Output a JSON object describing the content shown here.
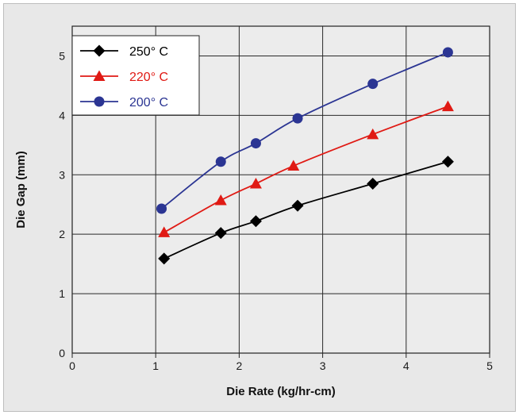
{
  "chart_data": {
    "type": "line",
    "title": "",
    "xlabel": "Die Rate (kg/hr-cm)",
    "ylabel": "Die Gap (mm)",
    "xlim": [
      0,
      5
    ],
    "ylim": [
      0,
      5.5
    ],
    "x_ticks": [
      "0",
      "1",
      "2",
      "3",
      "4",
      "5"
    ],
    "y_ticks": [
      "0",
      "1",
      "2",
      "3",
      "4",
      "5"
    ],
    "grid": true,
    "legend_position": "top-left",
    "series": [
      {
        "name": "250° C",
        "color": "#000000",
        "marker": "diamond",
        "points": [
          [
            1.1,
            1.59
          ],
          [
            1.78,
            2.02
          ],
          [
            2.2,
            2.22
          ],
          [
            2.7,
            2.48
          ],
          [
            3.6,
            2.85
          ],
          [
            4.5,
            3.22
          ]
        ]
      },
      {
        "name": "220° C",
        "color": "#e01a14",
        "marker": "triangle",
        "points": [
          [
            1.1,
            2.03
          ],
          [
            1.78,
            2.57
          ],
          [
            2.2,
            2.85
          ],
          [
            2.65,
            3.15
          ],
          [
            3.6,
            3.68
          ],
          [
            4.5,
            4.15
          ]
        ]
      },
      {
        "name": "200° C",
        "color": "#2b3593",
        "marker": "circle",
        "points": [
          [
            1.07,
            2.43
          ],
          [
            1.78,
            3.22
          ],
          [
            2.2,
            3.53
          ],
          [
            2.7,
            3.95
          ],
          [
            3.6,
            4.53
          ],
          [
            4.5,
            5.06
          ]
        ]
      }
    ]
  }
}
